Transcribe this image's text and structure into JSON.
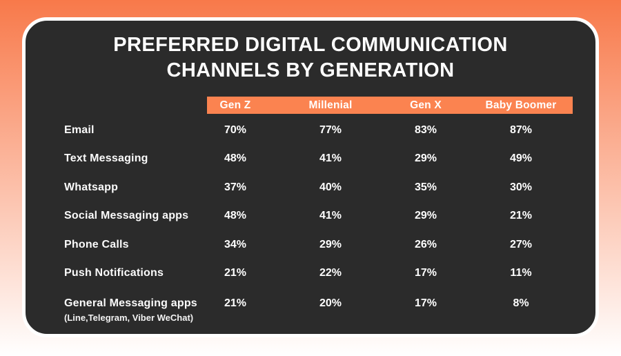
{
  "title": {
    "lines": [
      "PREFERRED DIGITAL COMMUNICATION",
      "CHANNELS BY GENERATION"
    ]
  },
  "chart_data": {
    "type": "table",
    "title": "PREFERRED DIGITAL COMMUNICATION CHANNELS BY GENERATION",
    "columns": [
      "Gen Z",
      "Millenial",
      "Gen X",
      "Baby Boomer"
    ],
    "rows": [
      {
        "label": "Email",
        "values": [
          "70%",
          "77%",
          "83%",
          "87%"
        ]
      },
      {
        "label": "Text Messaging",
        "values": [
          "48%",
          "41%",
          "29%",
          "49%"
        ]
      },
      {
        "label": "Whatsapp",
        "values": [
          "37%",
          "40%",
          "35%",
          "30%"
        ]
      },
      {
        "label": "Social Messaging apps",
        "values": [
          "48%",
          "41%",
          "29%",
          "21%"
        ]
      },
      {
        "label": "Phone Calls",
        "values": [
          "34%",
          "29%",
          "26%",
          "27%"
        ]
      },
      {
        "label": "Push Notifications",
        "values": [
          "21%",
          "22%",
          "17%",
          "11%"
        ]
      },
      {
        "label": "General Messaging apps",
        "sublabel": "(Line,Telegram, Viber WeChat)",
        "values": [
          "21%",
          "20%",
          "17%",
          "8%"
        ]
      }
    ]
  },
  "colors": {
    "accent_orange": "#FB8350",
    "background_gradient_top": "#F8794A",
    "background_gradient_bottom": "#FFFFFF",
    "card_background": "#2B2B2B",
    "text_white": "#FFFFFF"
  }
}
